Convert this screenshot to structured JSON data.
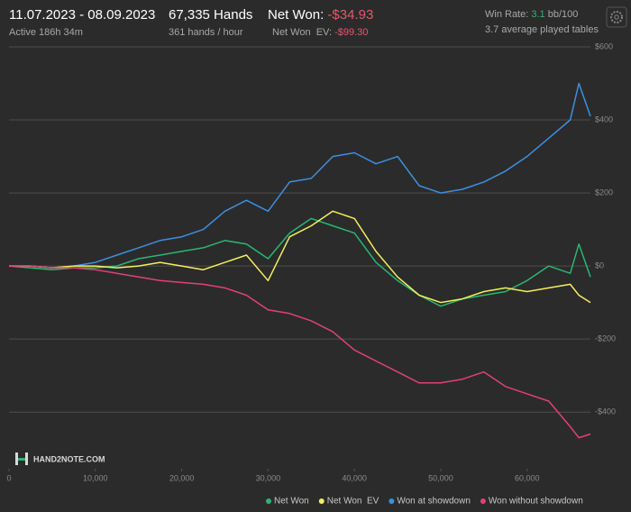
{
  "header": {
    "date_range": "11.07.2023 - 08.09.2023",
    "active": "Active 186h 34m",
    "hands": "67,335 Hands",
    "hands_per_hour": "361 hands / hour",
    "net_won_label": "Net Won:",
    "net_won": "-$34.93",
    "net_won_ev_label": "Net Won  EV:",
    "net_won_ev": "-$99.30",
    "win_rate_label": "Win Rate:",
    "win_rate": "3.1",
    "win_rate_unit": "bb/100",
    "tables": "3.7 average played tables",
    "logo": "HAND2NOTE.COM"
  },
  "chart_data": {
    "type": "line",
    "x": [
      0,
      2500,
      5000,
      7500,
      10000,
      12500,
      15000,
      17500,
      20000,
      22500,
      25000,
      27500,
      30000,
      32500,
      35000,
      37500,
      40000,
      42500,
      45000,
      47500,
      50000,
      52500,
      55000,
      57500,
      60000,
      62500,
      65000,
      66000,
      67335
    ],
    "series": [
      {
        "name": "Net Won",
        "color": "#2bb673",
        "values": [
          0,
          -5,
          -10,
          -5,
          -5,
          0,
          20,
          30,
          40,
          50,
          70,
          60,
          20,
          90,
          130,
          110,
          90,
          10,
          -40,
          -80,
          -110,
          -90,
          -80,
          -70,
          -40,
          0,
          -20,
          60,
          -30
        ]
      },
      {
        "name": "Net Won  EV",
        "color": "#f3ef5e",
        "values": [
          0,
          0,
          -5,
          0,
          0,
          -5,
          0,
          10,
          0,
          -10,
          10,
          30,
          -40,
          80,
          110,
          150,
          130,
          40,
          -30,
          -80,
          -100,
          -90,
          -70,
          -60,
          -70,
          -60,
          -50,
          -80,
          -100
        ]
      },
      {
        "name": "Won at showdown",
        "color": "#3d8fe0",
        "values": [
          0,
          0,
          -5,
          0,
          10,
          30,
          50,
          70,
          80,
          100,
          150,
          180,
          150,
          230,
          240,
          300,
          310,
          280,
          300,
          220,
          200,
          210,
          230,
          260,
          300,
          350,
          400,
          500,
          410
        ]
      },
      {
        "name": "Won without showdown",
        "color": "#e0407a",
        "values": [
          0,
          0,
          -5,
          -5,
          -10,
          -20,
          -30,
          -40,
          -45,
          -50,
          -60,
          -80,
          -120,
          -130,
          -150,
          -180,
          -230,
          -260,
          -290,
          -320,
          -320,
          -310,
          -290,
          -330,
          -350,
          -370,
          -440,
          -470,
          -460
        ]
      }
    ],
    "xlim": [
      0,
      67335
    ],
    "ylim": [
      -555,
      600
    ],
    "xticks": [
      0,
      {
        "value": 10000,
        "label": "10,000"
      },
      {
        "value": 20000,
        "label": "20,000"
      },
      {
        "value": 30000,
        "label": "30,000"
      },
      {
        "value": 40000,
        "label": "40,000"
      },
      {
        "value": 50000,
        "label": "50,000"
      },
      {
        "value": 60000,
        "label": "60,000"
      }
    ],
    "yticks": [
      {
        "value": -400,
        "label": "-$400"
      },
      {
        "value": -200,
        "label": "-$200"
      },
      {
        "value": 0,
        "label": "$0"
      },
      {
        "value": 200,
        "label": "$200"
      },
      {
        "value": 400,
        "label": "$400"
      },
      {
        "value": 600,
        "label": "$600"
      }
    ],
    "grid": true
  }
}
